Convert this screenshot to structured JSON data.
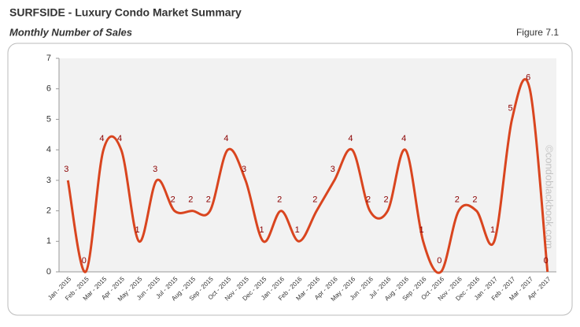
{
  "header": {
    "title": "SURFSIDE - Luxury Condo Market Summary",
    "subtitle": "Monthly Number of Sales",
    "figure": "Figure 7.1"
  },
  "chart_data": {
    "type": "line",
    "categories": [
      "Jan - 2015",
      "Feb - 2015",
      "Mar - 2015",
      "Apr - 2015",
      "May - 2015",
      "Jun - 2015",
      "Jul - 2015",
      "Aug - 2015",
      "Sep - 2015",
      "Oct - 2015",
      "Nov - 2015",
      "Dec - 2015",
      "Jan - 2016",
      "Feb - 2016",
      "Mar - 2016",
      "Apr - 2016",
      "May - 2016",
      "Jun - 2016",
      "Jul - 2016",
      "Aug - 2016",
      "Sep - 2016",
      "Oct - 2016",
      "Nov - 2016",
      "Dec - 2016",
      "Jan - 2017",
      "Feb - 2017",
      "Mar - 2017",
      "Apr - 2017"
    ],
    "values": [
      3,
      0,
      4,
      4,
      1,
      3,
      2,
      2,
      2,
      4,
      3,
      1,
      2,
      1,
      2,
      3,
      4,
      2,
      2,
      4,
      1,
      0,
      2,
      2,
      1,
      5,
      6,
      0
    ],
    "color": "#d9451f",
    "label_color": "#8b0000",
    "ylim": [
      0,
      7
    ],
    "yticks": [
      0,
      1,
      2,
      3,
      4,
      5,
      6,
      7
    ],
    "grid": false,
    "smooth": true,
    "watermark": "©condoblackbook.com"
  }
}
